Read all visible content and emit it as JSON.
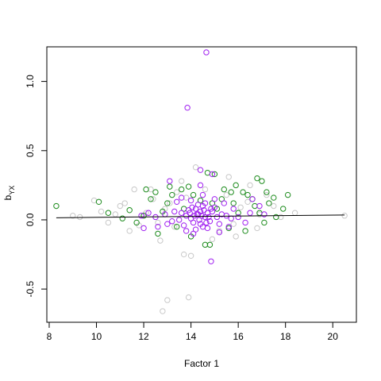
{
  "chart_data": {
    "type": "scatter",
    "title": "",
    "xlabel": "Factor 1",
    "ylabel_main": "b",
    "ylabel_sub": "YX",
    "xlim": [
      7.9,
      21.0
    ],
    "ylim": [
      -0.74,
      1.25
    ],
    "x_ticks": [
      8,
      10,
      12,
      14,
      16,
      18,
      20
    ],
    "y_ticks": [
      -0.5,
      0.0,
      0.5,
      1.0
    ],
    "x_tick_labels": [
      "8",
      "10",
      "12",
      "14",
      "16",
      "18",
      "20"
    ],
    "y_tick_labels": [
      "-0.5",
      "0.0",
      "0.5",
      "1.0"
    ],
    "grid": false,
    "legend": "none",
    "colors": {
      "grey": "#c8c8c8",
      "green": "#1e8c1e",
      "purple": "#a020f0",
      "line": "#000000"
    },
    "trend_line": {
      "x": [
        8.3,
        20.5
      ],
      "y": [
        0.015,
        0.035
      ]
    },
    "series": [
      {
        "color_key": "grey",
        "points": [
          [
            13.0,
            -0.58
          ],
          [
            12.8,
            -0.66
          ],
          [
            13.9,
            -0.56
          ],
          [
            13.7,
            -0.25
          ],
          [
            14.0,
            -0.26
          ],
          [
            12.7,
            -0.15
          ],
          [
            14.2,
            0.38
          ],
          [
            13.6,
            0.28
          ],
          [
            15.6,
            0.31
          ],
          [
            11.6,
            0.22
          ],
          [
            9.9,
            0.14
          ],
          [
            9.3,
            0.02
          ],
          [
            9.0,
            0.03
          ],
          [
            10.2,
            0.06
          ],
          [
            18.4,
            0.05
          ],
          [
            17.2,
            0.18
          ],
          [
            16.5,
            0.25
          ],
          [
            12.3,
            0.22
          ],
          [
            11.0,
            0.1
          ],
          [
            10.5,
            -0.02
          ],
          [
            11.4,
            -0.08
          ],
          [
            15.9,
            -0.12
          ],
          [
            16.8,
            -0.06
          ],
          [
            17.8,
            0.02
          ],
          [
            20.5,
            0.03
          ],
          [
            12.1,
            0.05
          ],
          [
            12.6,
            -0.02
          ],
          [
            13.1,
            0.12
          ],
          [
            13.3,
            -0.05
          ],
          [
            15.2,
            -0.08
          ],
          [
            15.5,
            0.18
          ],
          [
            16.1,
            0.09
          ],
          [
            14.9,
            -0.14
          ],
          [
            13.8,
            0.16
          ],
          [
            12.9,
            0.08
          ],
          [
            11.8,
            -0.04
          ],
          [
            16.9,
            0.04
          ],
          [
            17.5,
            0.1
          ],
          [
            10.8,
            0.04
          ],
          [
            12.4,
            0.15
          ],
          [
            14.6,
            0.22
          ],
          [
            13.4,
            0.2
          ],
          [
            15.8,
            -0.03
          ],
          [
            16.4,
            0.13
          ],
          [
            11.2,
            0.12
          ]
        ]
      },
      {
        "color_key": "green",
        "points": [
          [
            8.3,
            0.1
          ],
          [
            10.1,
            0.13
          ],
          [
            10.5,
            0.05
          ],
          [
            11.4,
            0.07
          ],
          [
            12.1,
            0.22
          ],
          [
            12.5,
            0.2
          ],
          [
            13.1,
            0.24
          ],
          [
            13.6,
            0.22
          ],
          [
            13.9,
            0.24
          ],
          [
            14.1,
            0.18
          ],
          [
            14.7,
            0.34
          ],
          [
            15.0,
            0.33
          ],
          [
            15.4,
            0.22
          ],
          [
            15.9,
            0.25
          ],
          [
            16.2,
            0.2
          ],
          [
            16.4,
            0.18
          ],
          [
            16.8,
            0.3
          ],
          [
            17.0,
            0.28
          ],
          [
            17.2,
            0.2
          ],
          [
            17.5,
            0.16
          ],
          [
            17.9,
            0.08
          ],
          [
            18.1,
            0.18
          ],
          [
            12.6,
            -0.1
          ],
          [
            13.4,
            -0.05
          ],
          [
            14.0,
            -0.12
          ],
          [
            14.6,
            -0.18
          ],
          [
            14.8,
            -0.18
          ],
          [
            15.6,
            -0.06
          ],
          [
            16.3,
            -0.08
          ],
          [
            16.9,
            0.05
          ],
          [
            12.0,
            0.03
          ],
          [
            11.7,
            -0.02
          ],
          [
            13.0,
            0.12
          ],
          [
            15.1,
            0.08
          ],
          [
            15.8,
            0.12
          ],
          [
            16.6,
            0.15
          ],
          [
            17.6,
            0.02
          ],
          [
            12.3,
            0.15
          ],
          [
            13.7,
            0.08
          ],
          [
            14.4,
            0.14
          ],
          [
            15.3,
            0.15
          ],
          [
            16.0,
            0.05
          ],
          [
            17.3,
            0.12
          ],
          [
            11.1,
            0.01
          ],
          [
            12.8,
            0.06
          ],
          [
            13.2,
            0.18
          ],
          [
            15.7,
            0.2
          ],
          [
            16.7,
            0.1
          ],
          [
            17.1,
            -0.02
          ],
          [
            14.9,
            0.12
          ]
        ]
      },
      {
        "color_key": "purple",
        "points": [
          [
            14.65,
            1.21
          ],
          [
            13.85,
            0.81
          ],
          [
            14.9,
            0.33
          ],
          [
            14.4,
            0.36
          ],
          [
            14.85,
            -0.3
          ],
          [
            13.1,
            0.28
          ],
          [
            14.4,
            0.25
          ],
          [
            16.6,
            0.15
          ],
          [
            12.6,
            -0.05
          ],
          [
            14.5,
            -0.05
          ],
          [
            14.4,
            0.06
          ],
          [
            14.3,
            0.04
          ],
          [
            14.6,
            0.02
          ],
          [
            14.2,
            0.08
          ],
          [
            14.7,
            0.05
          ],
          [
            13.8,
            0.03
          ],
          [
            15.1,
            0.02
          ],
          [
            14.0,
            0.01
          ],
          [
            14.5,
            0.1
          ],
          [
            13.6,
            0.05
          ],
          [
            15.3,
            0.04
          ],
          [
            14.8,
            -0.01
          ],
          [
            14.1,
            -0.02
          ],
          [
            13.9,
            0.07
          ],
          [
            15.0,
            0.09
          ],
          [
            14.4,
            -0.03
          ],
          [
            13.5,
            0.0
          ],
          [
            15.5,
            0.03
          ],
          [
            14.6,
            0.12
          ],
          [
            13.3,
            0.06
          ],
          [
            15.7,
            0.01
          ],
          [
            14.9,
            0.06
          ],
          [
            13.7,
            -0.04
          ],
          [
            14.3,
            0.11
          ],
          [
            15.2,
            -0.03
          ],
          [
            12.9,
            0.04
          ],
          [
            16.0,
            0.02
          ],
          [
            13.2,
            -0.01
          ],
          [
            15.8,
            0.08
          ],
          [
            14.7,
            -0.06
          ],
          [
            12.2,
            0.05
          ],
          [
            16.3,
            -0.02
          ],
          [
            13.4,
            0.13
          ],
          [
            15.4,
            0.12
          ],
          [
            14.2,
            -0.07
          ],
          [
            12.5,
            0.02
          ],
          [
            16.5,
            0.05
          ],
          [
            14.0,
            0.14
          ],
          [
            15.6,
            -0.05
          ],
          [
            13.0,
            -0.03
          ],
          [
            14.45,
            0.03
          ],
          [
            14.55,
            0.07
          ],
          [
            14.35,
            0.0
          ],
          [
            14.75,
            0.02
          ],
          [
            14.25,
            0.04
          ],
          [
            14.65,
            -0.02
          ],
          [
            14.15,
            0.03
          ],
          [
            14.85,
            0.08
          ],
          [
            13.95,
            0.05
          ],
          [
            14.05,
            0.09
          ],
          [
            17.1,
            0.04
          ],
          [
            11.9,
            0.03
          ],
          [
            12.0,
            -0.06
          ],
          [
            16.9,
            0.1
          ],
          [
            13.6,
            0.16
          ],
          [
            15.0,
            0.15
          ],
          [
            14.5,
            0.18
          ],
          [
            14.1,
            -0.1
          ],
          [
            15.2,
            -0.09
          ],
          [
            13.8,
            -0.08
          ]
        ]
      }
    ]
  }
}
